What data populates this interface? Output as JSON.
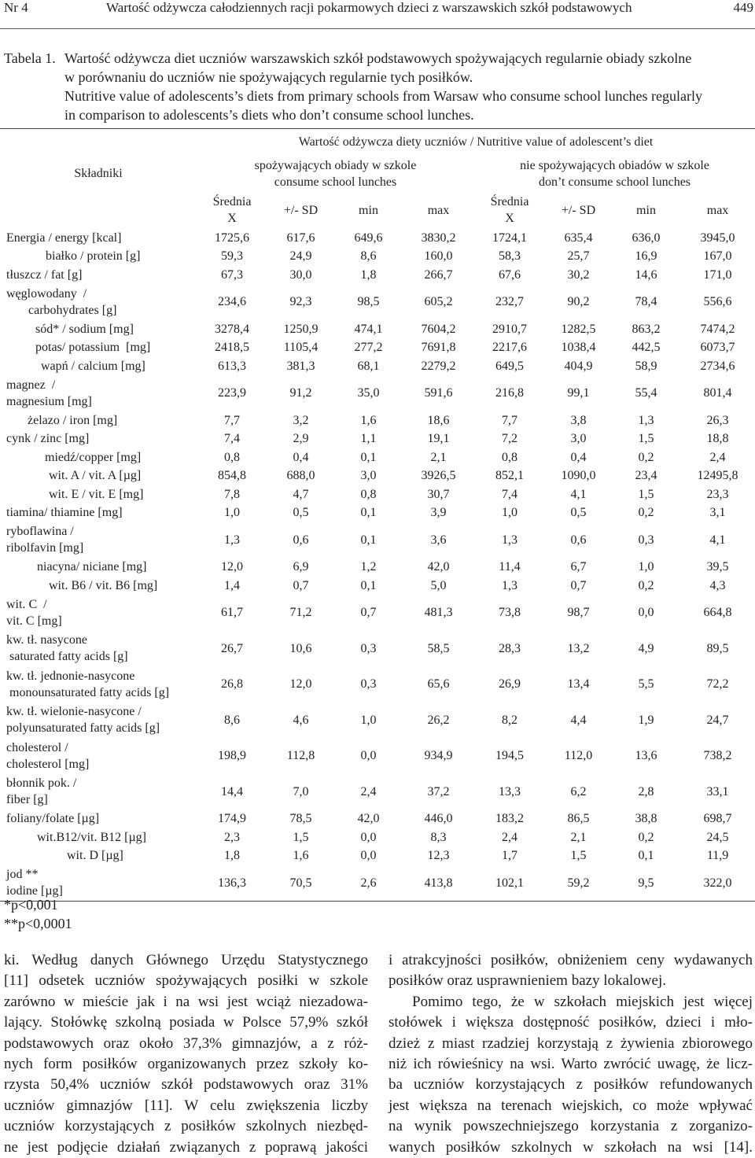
{
  "header": {
    "issue": "Nr 4",
    "title": "Wartość odżywcza całodziennych racji pokarmowych dzieci z warszawskich szkół podstawowych",
    "page": "449"
  },
  "caption": {
    "label": "Tabela 1.",
    "pl": [
      "Wartość odżywcza diet uczniów warszawskich szkół podstawowych spożywających regularnie obiady szkolne",
      "w porównaniu do uczniów nie spożywających regularnie tych posiłków."
    ],
    "en": [
      "Nutritive value of adolescents’s diets from primary schools from Warsaw who consume school lunches regularly",
      "in comparison to adolescents’s diets who don’t consume school lunches."
    ]
  },
  "table": {
    "super_header": "Wartość odżywcza diety uczniów / Nutritive value of adolescent’s diet",
    "ingredients": "Składniki",
    "groups": [
      "spożywających obiady w szkole\nconsume school lunches",
      "nie spożywających obiadów w szkole\ndon’t consume school lunches"
    ],
    "columns": [
      "Średnia\nX",
      "+/- SD",
      "min",
      "max",
      "Średnia\nX",
      "+/- SD",
      "min",
      "max"
    ],
    "rows": [
      [
        "Energia / energy [kcal]",
        "1725,6",
        "617,6",
        "649,6",
        "3830,2",
        "1724,1",
        "635,4",
        "636,0",
        "3945,0"
      ],
      [
        "białko / protein [g]",
        "59,3",
        "24,9",
        "8,6",
        "160,0",
        "58,3",
        "25,7",
        "16,9",
        "167,0"
      ],
      [
        "tłuszcz / fat [g]",
        "67,3",
        "30,0",
        "1,8",
        "266,7",
        "67,6",
        "30,2",
        "14,6",
        "171,0"
      ],
      [
        "węglowodany  /\n       carbohydrates [g]",
        "234,6",
        "92,3",
        "98,5",
        "605,2",
        "232,7",
        "90,2",
        "78,4",
        "556,6"
      ],
      [
        "sód* / sodium [mg]",
        "3278,4",
        "1250,9",
        "474,1",
        "7604,2",
        "2910,7",
        "1282,5",
        "863,2",
        "7474,2"
      ],
      [
        "potas/ potassium  [mg]",
        "2418,5",
        "1105,4",
        "277,2",
        "7691,8",
        "2217,6",
        "1038,4",
        "442,5",
        "6073,7"
      ],
      [
        "wapń / calcium [mg]",
        "613,3",
        "381,3",
        "68,1",
        "2279,2",
        "649,5",
        "404,9",
        "58,9",
        "2734,6"
      ],
      [
        "magnez  /\nmagnesium [mg]",
        "223,9",
        "91,2",
        "35,0",
        "591,6",
        "216,8",
        "99,1",
        "55,4",
        "801,4"
      ],
      [
        "żelazo / iron [mg]",
        "7,7",
        "3,2",
        "1,6",
        "18,6",
        "7,7",
        "3,8",
        "1,3",
        "26,3"
      ],
      [
        "cynk / zinc [mg]",
        "7,4",
        "2,9",
        "1,1",
        "19,1",
        "7,2",
        "3,0",
        "1,5",
        "18,8"
      ],
      [
        "miedź/copper [mg]",
        "0,8",
        "0,4",
        "0,1",
        "2,1",
        "0,8",
        "0,4",
        "0,2",
        "2,4"
      ],
      [
        "wit. A / vit. A [µg]",
        "854,8",
        "688,0",
        "3,0",
        "3926,5",
        "852,1",
        "1090,0",
        "23,4",
        "12495,8"
      ],
      [
        "wit. E / vit. E [mg]",
        "7,8",
        "4,7",
        "0,8",
        "30,7",
        "7,4",
        "4,1",
        "1,5",
        "23,3"
      ],
      [
        "tiamina/ thiamine [mg]",
        "1,0",
        "0,5",
        "0,1",
        "3,9",
        "1,0",
        "0,5",
        "0,2",
        "3,1"
      ],
      [
        "ryboflawina /\nribolfavin [mg]",
        "1,3",
        "0,6",
        "0,1",
        "3,6",
        "1,3",
        "0,6",
        "0,3",
        "4,1"
      ],
      [
        "niacyna/ niciane [mg]",
        "12,0",
        "6,9",
        "1,2",
        "42,0",
        "11,4",
        "6,7",
        "1,0",
        "39,5"
      ],
      [
        "wit. B6 / vit. B6 [mg]",
        "1,4",
        "0,7",
        "0,1",
        "5,0",
        "1,3",
        "0,7",
        "0,2",
        "4,3"
      ],
      [
        "wit. C  /\nvit. C [mg]",
        "61,7",
        "71,2",
        "0,7",
        "481,3",
        "73,8",
        "98,7",
        "0,0",
        "664,8"
      ],
      [
        "kw. tł. nasycone\n saturated fatty acids [g]",
        "26,7",
        "10,6",
        "0,3",
        "58,5",
        "28,3",
        "13,2",
        "4,9",
        "89,5"
      ],
      [
        "kw. tł. jednonie-nasycone\n monounsaturated fatty acids [g]",
        "26,8",
        "12,0",
        "0,3",
        "65,6",
        "26,9",
        "13,4",
        "5,5",
        "72,2"
      ],
      [
        "kw. tł. wielonie-nasycone /\npolyunsaturated fatty acids [g]",
        "8,6",
        "4,6",
        "1,0",
        "26,2",
        "8,2",
        "4,4",
        "1,9",
        "24,7"
      ],
      [
        "cholesterol /\ncholesterol [mg]",
        "198,9",
        "112,8",
        "0,0",
        "934,9",
        "194,5",
        "112,0",
        "13,6",
        "738,2"
      ],
      [
        "błonnik pok. /\nfiber [g]",
        "14,4",
        "7,0",
        "2,4",
        "37,2",
        "13,3",
        "6,2",
        "2,8",
        "33,1"
      ],
      [
        "foliany/folate [µg]",
        "174,9",
        "78,5",
        "42,0",
        "446,0",
        "183,2",
        "86,5",
        "38,8",
        "698,7"
      ],
      [
        "wit.B12/vit. B12 [µg]",
        "2,3",
        "1,5",
        "0,0",
        "8,3",
        "2,4",
        "2,1",
        "0,2",
        "24,5"
      ],
      [
        "wit. D [µg]",
        "1,8",
        "1,6",
        "0,0",
        "12,3",
        "1,7",
        "1,5",
        "0,1",
        "11,9"
      ],
      [
        "jod **\niodine [µg]",
        "136,3",
        "70,5",
        "2,6",
        "413,8",
        "102,1",
        "59,2",
        "9,5",
        "322,0"
      ]
    ]
  },
  "footnotes": [
    "*p<0,001",
    "**p<0,0001"
  ],
  "body": {
    "left": [
      "ki. Według danych Głównego Urzędu Statystycznego",
      "[11] odsetek uczniów spożywających posiłki w szkole",
      "zarówno w mieście jak i na wsi jest wciąż niezadowa-",
      "lający. Stołówkę szkolną posiada w Polsce 57,9% szkół",
      "podstawowych oraz około 37,3% gimnazjów, a z róż-",
      "nych form posiłków organizowanych przez szkoły ko-",
      "rzysta 50,4% uczniów szkół podstawowych oraz 31%",
      "uczniów gimnazjów [11]. W celu zwiększenia liczby",
      "uczniów korzystających z posiłków szkolnych niezbęd-",
      "ne jest podjęcie działań związanych z poprawą jakości"
    ],
    "right": [
      "i atrakcyjności posiłków, obniżeniem ceny wydawanych",
      "posiłków oraz usprawnieniem bazy lokalowej.",
      "Pomimo tego, że w szkołach miejskich jest więcej",
      "stołówek i większa dostępność posiłków, dzieci i mło-",
      "dzież z miast rzadziej korzystają z żywienia zbiorowego",
      "niż ich rówieśnicy na wsi. Warto zwrócić uwagę, że licz-",
      "ba uczniów korzystających z posiłków refundowanych",
      "jest większa na terenach wiejskich, co może wpływać",
      "na wynik powszechniejszego korzystania z zorganizo-",
      "wanych posiłków szkolnych w szkołach na wsi  [14]."
    ]
  }
}
